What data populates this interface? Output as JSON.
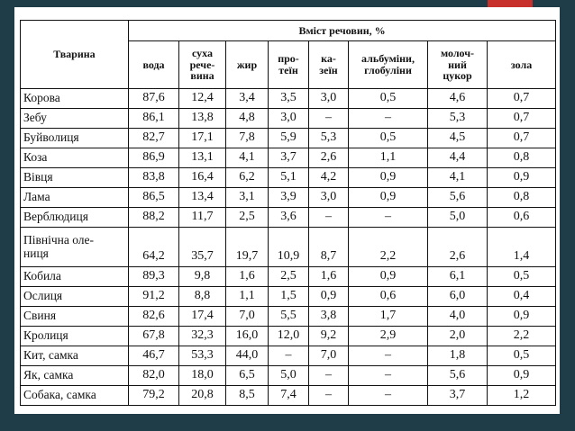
{
  "table": {
    "animal_header": "Тварина",
    "group_header": "Вміст речовин, %",
    "columns": [
      [
        "вода"
      ],
      [
        "суха",
        "рече-",
        "вина"
      ],
      [
        "жир"
      ],
      [
        "про-",
        "теїн"
      ],
      [
        "ка-",
        "зеїн"
      ],
      [
        "альбуміни,",
        "глобуліни"
      ],
      [
        "молоч-",
        "ний",
        "цукор"
      ],
      [
        "зола"
      ]
    ],
    "rows": [
      {
        "name": [
          "Корова"
        ],
        "values": [
          "87,6",
          "12,4",
          "3,4",
          "3,5",
          "3,0",
          "0,5",
          "4,6",
          "0,7"
        ]
      },
      {
        "name": [
          "Зебу"
        ],
        "values": [
          "86,1",
          "13,8",
          "4,8",
          "3,0",
          "–",
          "–",
          "5,3",
          "0,7"
        ]
      },
      {
        "name": [
          "Буйволиця"
        ],
        "values": [
          "82,7",
          "17,1",
          "7,8",
          "5,9",
          "5,3",
          "0,5",
          "4,5",
          "0,7"
        ]
      },
      {
        "name": [
          "Коза"
        ],
        "values": [
          "86,9",
          "13,1",
          "4,1",
          "3,7",
          "2,6",
          "1,1",
          "4,4",
          "0,8"
        ]
      },
      {
        "name": [
          "Вівця"
        ],
        "values": [
          "83,8",
          "16,4",
          "6,2",
          "5,1",
          "4,2",
          "0,9",
          "4,1",
          "0,9"
        ]
      },
      {
        "name": [
          "Лама"
        ],
        "values": [
          "86,5",
          "13,4",
          "3,1",
          "3,9",
          "3,0",
          "0,9",
          "5,6",
          "0,8"
        ]
      },
      {
        "name": [
          "Верблюдиця"
        ],
        "values": [
          "88,2",
          "11,7",
          "2,5",
          "3,6",
          "–",
          "–",
          "5,0",
          "0,6"
        ]
      },
      {
        "name": [
          "Північна оле-",
          "ниця"
        ],
        "values": [
          "64,2",
          "35,7",
          "19,7",
          "10,9",
          "8,7",
          "2,2",
          "2,6",
          "1,4"
        ]
      },
      {
        "name": [
          "Кобила"
        ],
        "values": [
          "89,3",
          "9,8",
          "1,6",
          "2,5",
          "1,6",
          "0,9",
          "6,1",
          "0,5"
        ]
      },
      {
        "name": [
          "Ослиця"
        ],
        "values": [
          "91,2",
          "8,8",
          "1,1",
          "1,5",
          "0,9",
          "0,6",
          "6,0",
          "0,4"
        ]
      },
      {
        "name": [
          "Свиня"
        ],
        "values": [
          "82,6",
          "17,4",
          "7,0",
          "5,5",
          "3,8",
          "1,7",
          "4,0",
          "0,9"
        ]
      },
      {
        "name": [
          "Кролиця"
        ],
        "values": [
          "67,8",
          "32,3",
          "16,0",
          "12,0",
          "9,2",
          "2,9",
          "2,0",
          "2,2"
        ]
      },
      {
        "name": [
          "Кит, самка"
        ],
        "values": [
          "46,7",
          "53,3",
          "44,0",
          "–",
          "7,0",
          "–",
          "1,8",
          "0,5"
        ]
      },
      {
        "name": [
          "Як, самка"
        ],
        "values": [
          "82,0",
          "18,0",
          "6,5",
          "5,0",
          "–",
          "–",
          "5,6",
          "0,9"
        ]
      },
      {
        "name": [
          "Собака, самка"
        ],
        "values": [
          "79,2",
          "20,8",
          "8,5",
          "7,4",
          "–",
          "–",
          "3,7",
          "1,2"
        ]
      }
    ]
  },
  "colors": {
    "background": "#1f3d49",
    "accent": "#c8302c",
    "sheet": "#ffffff"
  }
}
